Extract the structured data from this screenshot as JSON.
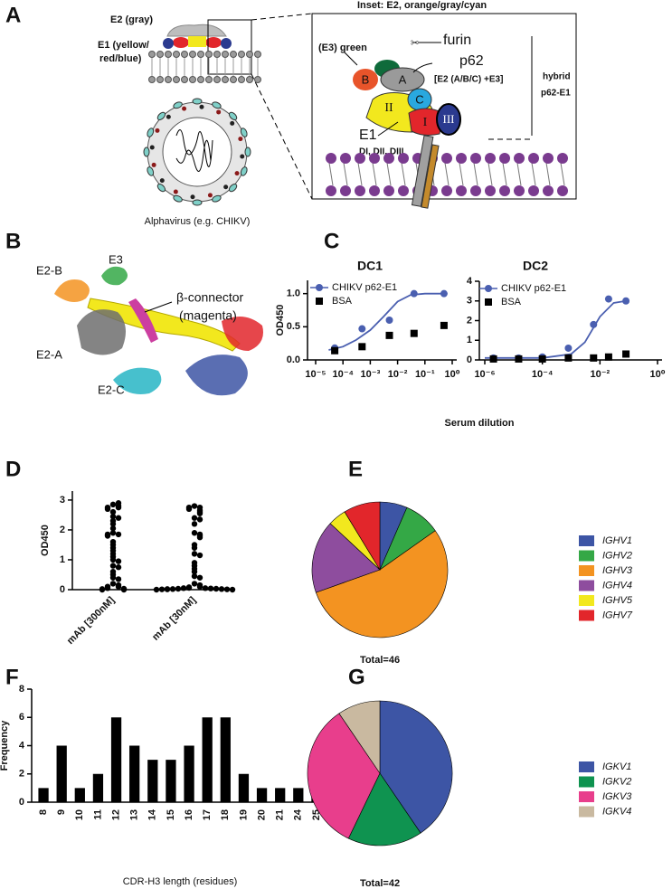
{
  "figure": {
    "panel_labels": [
      "A",
      "B",
      "C",
      "D",
      "E",
      "F",
      "G"
    ]
  },
  "panel_a": {
    "e2_label": "E2 (gray)",
    "e1_label": [
      "E1 (yellow/",
      "red/blue)"
    ],
    "virus_label": "Alphavirus (e.g. CHIKV)",
    "inset_title": "Inset: E2, orange/gray/cyan",
    "e3_label": "(E3) green",
    "furin": "furin",
    "p62": "p62",
    "p62_note": "[E2 (A/B/C) +E3]",
    "hybrid": [
      "hybrid",
      "p62-E1"
    ],
    "domains": {
      "B": "B",
      "A": "A",
      "C": "C",
      "II": "II",
      "I": "I",
      "III": "III"
    },
    "e1": "E1",
    "e1_domains": "DI, DII, DIII"
  },
  "panel_b": {
    "labels": [
      "E2-B",
      "E3",
      "β-connector",
      "(magenta)",
      "E2-A",
      "E2-C"
    ]
  },
  "panel_c": {
    "xlabel": "Serum dilution"
  },
  "chart_data": [
    {
      "type": "line",
      "title": "DC1",
      "ylabel": "OD450",
      "log_x": true,
      "legend": "top-left",
      "xlim": [
        1e-05,
        1
      ],
      "ylim": [
        0,
        1.2
      ],
      "xticks": [
        {
          "value": 1e-05,
          "label": "10⁻⁵"
        },
        {
          "value": 0.0001,
          "label": "10⁻⁴"
        },
        {
          "value": 0.001,
          "label": "10⁻³"
        },
        {
          "value": 0.01,
          "label": "10⁻²"
        },
        {
          "value": 0.1,
          "label": "10⁻¹"
        },
        {
          "value": 1,
          "label": "10⁰"
        }
      ],
      "yticks": [
        {
          "value": 0,
          "label": "0.0"
        },
        0.5,
        {
          "value": 1,
          "label": "1.0"
        }
      ],
      "series": [
        {
          "name": "CHIKV p62-E1",
          "color": "#4a5fb0",
          "marker": "circle",
          "x": [
            5e-05,
            0.0005,
            0.005,
            0.04,
            0.5
          ],
          "values": [
            0.18,
            0.47,
            0.6,
            1.0,
            1.0
          ]
        },
        {
          "name": "BSA",
          "color": "#000000",
          "marker": "square",
          "x": [
            5e-05,
            0.0005,
            0.005,
            0.04,
            0.5
          ],
          "values": [
            0.14,
            0.2,
            0.37,
            0.4,
            0.52
          ]
        }
      ],
      "fit": {
        "color": "#4a5fb0",
        "x": [
          3e-05,
          0.0001,
          0.0003,
          0.001,
          0.003,
          0.01,
          0.03,
          0.1,
          0.5
        ],
        "values": [
          0.15,
          0.2,
          0.3,
          0.45,
          0.65,
          0.88,
          0.98,
          1.0,
          1.0
        ]
      }
    },
    {
      "type": "line",
      "title": "DC2",
      "log_x": true,
      "legend": "top-left",
      "xlim": [
        1e-06,
        1
      ],
      "ylim": [
        0,
        4
      ],
      "xticks": [
        {
          "value": 1e-06,
          "label": "10⁻⁶"
        },
        {
          "value": 0.0001,
          "label": "10⁻⁴"
        },
        {
          "value": 0.01,
          "label": "10⁻²"
        },
        {
          "value": 1,
          "label": "10⁰"
        }
      ],
      "yticks": [
        0,
        1,
        2,
        3,
        4
      ],
      "series": [
        {
          "name": "CHIKV p62-E1",
          "color": "#4a5fb0",
          "marker": "circle",
          "x": [
            2e-06,
            1.5e-05,
            0.0001,
            0.0008,
            0.006,
            0.02,
            0.08
          ],
          "values": [
            0.1,
            0.1,
            0.15,
            0.6,
            1.8,
            3.1,
            3.0
          ]
        },
        {
          "name": "BSA",
          "color": "#000000",
          "marker": "square",
          "x": [
            2e-06,
            1.5e-05,
            0.0001,
            0.0008,
            0.006,
            0.02,
            0.08
          ],
          "values": [
            0.05,
            0.05,
            0.05,
            0.1,
            0.1,
            0.15,
            0.3
          ]
        }
      ],
      "fit": {
        "color": "#4a5fb0",
        "x": [
          1e-06,
          0.0001,
          0.001,
          0.003,
          0.01,
          0.03,
          0.08
        ],
        "values": [
          0.1,
          0.1,
          0.3,
          0.9,
          2.2,
          2.9,
          3.0
        ]
      }
    },
    {
      "type": "strip",
      "ylabel": "OD450",
      "color": "#000000",
      "ylim": [
        0,
        3.3
      ],
      "yticks": [
        0,
        1,
        2,
        3
      ],
      "categories": [
        "mAb [300nM]",
        "mAb [30nM]"
      ],
      "values": [
        [
          2.85,
          2.9,
          2.8,
          2.75,
          2.75,
          2.7,
          2.6,
          2.45,
          2.4,
          2.3,
          2.2,
          2.05,
          1.9,
          1.85,
          1.85,
          1.8,
          1.6,
          1.5,
          1.4,
          1.3,
          1.2,
          1.1,
          1.0,
          0.95,
          0.8,
          0.75,
          0.6,
          0.5,
          0.4,
          0.35,
          0.2,
          0.15,
          0.1,
          0.1,
          0.05,
          0.03,
          0.02,
          0.0,
          0.0
        ],
        [
          2.8,
          2.75,
          2.75,
          2.7,
          2.65,
          2.6,
          2.55,
          2.4,
          2.35,
          2.2,
          1.9,
          1.85,
          1.8,
          1.75,
          1.5,
          1.4,
          1.2,
          1.15,
          0.9,
          0.8,
          0.7,
          0.6,
          0.45,
          0.4,
          0.2,
          0.15,
          0.1,
          0.08,
          0.06,
          0.05,
          0.05,
          0.04,
          0.03,
          0.03,
          0.02,
          0.02,
          0.02,
          0.01,
          0.01,
          0.01,
          0.0,
          0.0
        ]
      ]
    },
    {
      "type": "pie",
      "total_label": "Total=46",
      "categories": [
        "IGHV1",
        "IGHV2",
        "IGHV3",
        "IGHV4",
        "IGHV5",
        "IGHV7"
      ],
      "values": [
        3,
        4,
        25,
        8,
        2,
        4
      ],
      "colors": [
        "#3d55a5",
        "#34a846",
        "#f39321",
        "#8e4d9e",
        "#f2e81e",
        "#e2262b"
      ]
    },
    {
      "type": "bar",
      "color": "#000000",
      "ylabel": "Frequency",
      "xlabel": "CDR-H3 length (residues)",
      "ylim": [
        0,
        8
      ],
      "yticks": [
        0,
        2,
        4,
        6,
        8
      ],
      "categories": [
        "8",
        "9",
        "10",
        "11",
        "12",
        "13",
        "14",
        "15",
        "16",
        "17",
        "18",
        "19",
        "20",
        "21",
        "24",
        "25"
      ],
      "values": [
        1,
        4,
        1,
        2,
        6,
        4,
        3,
        3,
        4,
        6,
        6,
        2,
        1,
        1,
        1,
        1
      ]
    },
    {
      "type": "pie",
      "total_label": "Total=42",
      "categories": [
        "IGKV1",
        "IGKV2",
        "IGKV3",
        "IGKV4"
      ],
      "values": [
        17,
        7,
        14,
        4
      ],
      "colors": [
        "#3d55a5",
        "#0f9350",
        "#e83e8c",
        "#c9b9a0"
      ]
    }
  ]
}
